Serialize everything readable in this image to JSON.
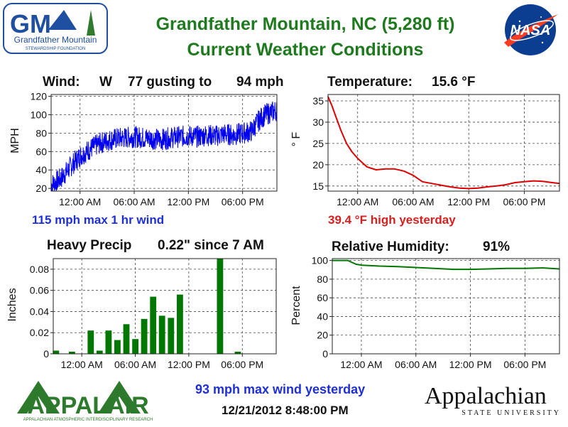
{
  "header": {
    "title_line1": "Grandfather Mountain, NC  (5,280 ft)",
    "title_line2": "Current Weather Conditions",
    "logo_left_text": "Grandfather Mountain",
    "logo_left_subtext": "STEWARDSHIP FOUNDATION",
    "logo_right_text": "NASA",
    "colors": {
      "title": "#1f7a1f",
      "nasa_blue": "#0b3d91",
      "nasa_red": "#fc3d21"
    }
  },
  "wind": {
    "label": "Wind:",
    "direction": "W",
    "speed": "77 gusting to",
    "gust": "94 mph",
    "note": "115 mph max 1 hr wind"
  },
  "temperature": {
    "label": "Temperature:",
    "value": "15.6 °F",
    "note": "39.4 °F high yesterday"
  },
  "precip": {
    "label": "Heavy Precip",
    "value": "0.22\" since 7 AM"
  },
  "humidity": {
    "label": "Relative Humidity:",
    "value": "91%"
  },
  "footer": {
    "max_wind_yesterday": "93 mph max wind yesterday",
    "timestamp": "12/21/2012 8:48:00 PM",
    "appalair_text": "APPALAIR",
    "appalair_subtext": "APPALACHIAN ATMOSPHERIC INTERDISCIPLINARY RESEARCH",
    "appstate_text": "Appalachian",
    "appstate_subtext": "STATE UNIVERSITY"
  },
  "chart_data": [
    {
      "id": "wind",
      "type": "line",
      "ylabel": "MPH",
      "yticks": [
        20,
        40,
        60,
        80,
        100,
        120
      ],
      "ylim": [
        17,
        122
      ],
      "xlim": [
        -3.2,
        21.8
      ],
      "xticks": [
        0,
        6,
        12,
        18
      ],
      "xtick_labels": [
        "12:00 AM",
        "06:00 AM",
        "12:00 PM",
        "06:00 PM"
      ],
      "color": "#0000ee",
      "grid": true,
      "series": [
        {
          "x": [
            -3.2,
            -2.5,
            -2,
            -1.5,
            -1,
            -0.5,
            0,
            1,
            2,
            3,
            4,
            5,
            6,
            7,
            8,
            9,
            10,
            11,
            12,
            13,
            14,
            15,
            16,
            17,
            18,
            19,
            19.5,
            20,
            20.5,
            21,
            21.8
          ],
          "y": [
            24,
            28,
            32,
            38,
            44,
            50,
            55,
            62,
            68,
            72,
            74,
            75,
            76,
            75,
            74,
            73,
            75,
            76,
            77,
            76,
            78,
            77,
            79,
            78,
            80,
            82,
            90,
            96,
            100,
            102,
            105
          ]
        }
      ]
    },
    {
      "id": "temperature",
      "type": "line",
      "ylabel": "° F",
      "yticks": [
        15,
        20,
        25,
        30,
        35
      ],
      "ylim": [
        13.8,
        36.5
      ],
      "xlim": [
        -3.2,
        21.8
      ],
      "xticks": [
        0,
        6,
        12,
        18
      ],
      "xtick_labels": [
        "12:00 AM",
        "06:00 AM",
        "12:00 PM",
        "06:00 PM"
      ],
      "color": "#dd0000",
      "grid": true,
      "series": [
        {
          "x": [
            -3.2,
            -2.8,
            -2.3,
            -1.8,
            -1.2,
            -0.6,
            0,
            1,
            2,
            3,
            4,
            5,
            6,
            7,
            8,
            9,
            10,
            11,
            12,
            13,
            14,
            15,
            16,
            17,
            18,
            19,
            20,
            21,
            21.8
          ],
          "y": [
            36,
            34,
            31,
            28,
            25,
            23,
            21.5,
            19.5,
            18.8,
            19,
            19,
            18.5,
            17.5,
            16,
            15.6,
            15.2,
            14.8,
            14.5,
            14.4,
            14.5,
            14.8,
            15,
            15.3,
            15.8,
            16,
            16.2,
            16.1,
            15.8,
            15.6
          ]
        }
      ]
    },
    {
      "id": "precip",
      "type": "bar",
      "ylabel": "Inches",
      "yticks": [
        0,
        0.02,
        0.04,
        0.06,
        0.08
      ],
      "ytick_labels": [
        "0",
        "0.02",
        "0.04",
        "0.06",
        "0.08"
      ],
      "ylim": [
        0,
        0.09
      ],
      "xlim": [
        -3.2,
        21.8
      ],
      "xticks": [
        0,
        6,
        12,
        18
      ],
      "xtick_labels": [
        "12:00 AM",
        "06:00 AM",
        "12:00 PM",
        "06:00 PM"
      ],
      "color": "#007700",
      "grid": true,
      "bar_width": 0.7,
      "x": [
        -2.9,
        -1.1,
        1,
        2,
        3,
        4,
        5,
        6,
        7,
        8,
        9,
        10,
        11,
        15.5,
        17.5
      ],
      "values": [
        0.003,
        0.002,
        0.022,
        0.003,
        0.022,
        0.013,
        0.028,
        0.014,
        0.033,
        0.054,
        0.036,
        0.034,
        0.056,
        0.09,
        0.002
      ]
    },
    {
      "id": "humidity",
      "type": "line",
      "ylabel": "Percent",
      "yticks": [
        0,
        20,
        40,
        60,
        80,
        100
      ],
      "ylim": [
        0,
        102
      ],
      "xlim": [
        -3.2,
        21.8
      ],
      "xticks": [
        0,
        6,
        12,
        18
      ],
      "xtick_labels": [
        "12:00 AM",
        "06:00 AM",
        "12:00 PM",
        "06:00 PM"
      ],
      "color": "#007700",
      "grid": true,
      "series": [
        {
          "x": [
            -3.2,
            -1.5,
            -0.6,
            0,
            2,
            4,
            6,
            8,
            10,
            12,
            14,
            16,
            18,
            20,
            21.8
          ],
          "y": [
            100,
            100,
            96,
            95,
            94,
            93.5,
            92.5,
            91.5,
            90.5,
            90.5,
            91,
            91.5,
            91.5,
            92,
            91
          ]
        }
      ]
    }
  ]
}
